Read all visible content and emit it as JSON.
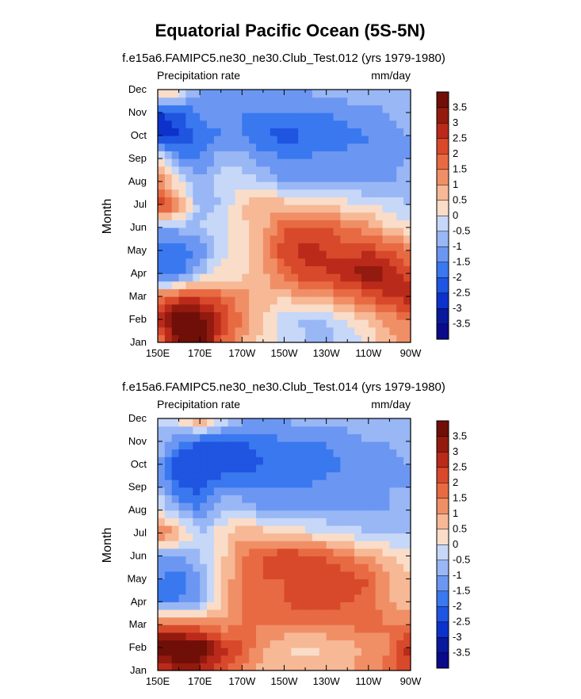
{
  "figure_title": "Equatorial Pacific Ocean (5S-5N)",
  "chart_data": [
    {
      "type": "heatmap",
      "title": "f.e15a6.FAMIPC5.ne30_ne30.Club_Test.012 (yrs 1979-1980)",
      "left_label": "Precipitation rate",
      "right_label": "mm/day",
      "ylabel": "Month",
      "xlabel": "",
      "x_tick_labels": [
        "150E",
        "170E",
        "170W",
        "150W",
        "130W",
        "110W",
        "90W"
      ],
      "y_tick_labels": [
        "Jan",
        "Feb",
        "Mar",
        "Apr",
        "May",
        "Jun",
        "Jul",
        "Aug",
        "Sep",
        "Oct",
        "Nov",
        "Dec"
      ],
      "xlim_deg_east": [
        150,
        270
      ],
      "x_values_deg_east": [
        150,
        160,
        170,
        180,
        190,
        200,
        210,
        220,
        230,
        240,
        250,
        260,
        270
      ],
      "colorbar_levels": [
        "3.5",
        "3",
        "2.5",
        "2",
        "1.5",
        "1",
        "0.5",
        "0",
        "-0.5",
        "-1",
        "-1.5",
        "-2",
        "-2.5",
        "-3",
        "-3.5"
      ],
      "values": [
        [
          1.5,
          3.5,
          4.0,
          2.0,
          1.0,
          0.3,
          -0.2,
          -0.5,
          -0.6,
          -0.5,
          0.2,
          0.8,
          1.2
        ],
        [
          2.5,
          4.2,
          4.0,
          2.5,
          1.5,
          0.4,
          -0.3,
          -0.6,
          -0.5,
          0.0,
          0.6,
          1.2,
          1.5
        ],
        [
          1.5,
          2.2,
          2.2,
          1.8,
          1.2,
          0.8,
          0.6,
          1.0,
          1.2,
          1.5,
          2.0,
          2.5,
          2.8
        ],
        [
          -2.0,
          -1.8,
          -0.5,
          0.2,
          0.3,
          0.8,
          1.8,
          2.3,
          2.5,
          2.8,
          3.6,
          3.0,
          2.2
        ],
        [
          -2.0,
          -1.8,
          -1.5,
          -0.2,
          0.2,
          1.0,
          2.3,
          2.8,
          2.5,
          2.2,
          2.4,
          2.0,
          1.5
        ],
        [
          -1.0,
          -0.8,
          -0.5,
          -0.1,
          0.3,
          0.8,
          2.0,
          2.0,
          2.0,
          1.5,
          1.2,
          0.5,
          0.2
        ],
        [
          2.8,
          1.2,
          -0.8,
          -0.5,
          0.6,
          0.8,
          0.8,
          0.6,
          0.4,
          0.2,
          0.0,
          -0.3,
          -0.5
        ],
        [
          1.5,
          0.0,
          -1.0,
          -0.3,
          -0.2,
          -0.5,
          -1.0,
          -1.2,
          -1.0,
          -1.0,
          -1.2,
          -1.0,
          -0.8
        ],
        [
          0.5,
          -1.5,
          -1.5,
          -0.7,
          -0.8,
          -1.2,
          -1.5,
          -1.5,
          -1.2,
          -1.2,
          -1.5,
          -1.2,
          -1.0
        ],
        [
          -3.0,
          -2.5,
          -1.8,
          -1.5,
          -1.5,
          -2.0,
          -2.2,
          -2.0,
          -2.0,
          -1.8,
          -1.5,
          -1.2,
          -1.0
        ],
        [
          -2.5,
          -2.2,
          -1.5,
          -1.2,
          -1.5,
          -1.5,
          -1.5,
          -1.5,
          -1.5,
          -1.2,
          -1.2,
          -1.0,
          -0.8
        ],
        [
          0.5,
          0.5,
          -1.0,
          -1.0,
          -1.2,
          -1.2,
          -1.2,
          -1.0,
          -0.8,
          -0.8,
          -0.8,
          -0.7,
          -0.5
        ]
      ]
    },
    {
      "type": "heatmap",
      "title": "f.e15a6.FAMIPC5.ne30_ne30.Club_Test.014 (yrs 1979-1980)",
      "left_label": "Precipitation rate",
      "right_label": "mm/day",
      "ylabel": "Month",
      "xlabel": "",
      "x_tick_labels": [
        "150E",
        "170E",
        "170W",
        "150W",
        "130W",
        "110W",
        "90W"
      ],
      "y_tick_labels": [
        "Jan",
        "Feb",
        "Mar",
        "Apr",
        "May",
        "Jun",
        "Jul",
        "Aug",
        "Sep",
        "Oct",
        "Nov",
        "Dec"
      ],
      "xlim_deg_east": [
        150,
        270
      ],
      "x_values_deg_east": [
        150,
        160,
        170,
        180,
        190,
        200,
        210,
        220,
        230,
        240,
        250,
        260,
        270
      ],
      "colorbar_levels": [
        "3.5",
        "3",
        "2.5",
        "2",
        "1.5",
        "1",
        "0.5",
        "0",
        "-0.5",
        "-1",
        "-1.5",
        "-2",
        "-2.5",
        "-3",
        "-3.5"
      ],
      "values": [
        [
          2.5,
          3.0,
          2.8,
          2.0,
          1.5,
          0.8,
          0.6,
          0.6,
          0.8,
          1.0,
          1.2,
          1.8,
          2.5
        ],
        [
          4.0,
          4.2,
          4.2,
          2.8,
          2.0,
          1.0,
          0.5,
          0.4,
          0.5,
          0.8,
          1.0,
          1.5,
          2.8
        ],
        [
          2.0,
          2.0,
          1.5,
          1.2,
          1.5,
          1.5,
          1.5,
          1.5,
          1.5,
          1.5,
          1.8,
          1.5,
          1.5
        ],
        [
          -1.5,
          -1.5,
          -1.0,
          0.5,
          1.5,
          1.5,
          2.0,
          2.2,
          2.5,
          2.0,
          1.8,
          1.0,
          0.5
        ],
        [
          -1.5,
          -1.8,
          -1.2,
          0.5,
          1.5,
          2.0,
          2.0,
          2.0,
          2.3,
          2.2,
          2.0,
          1.0,
          0.5
        ],
        [
          -1.0,
          -1.0,
          -0.5,
          0.3,
          1.5,
          2.0,
          2.5,
          2.2,
          2.0,
          1.5,
          1.0,
          0.5,
          0.3
        ],
        [
          1.8,
          1.0,
          -0.5,
          0.3,
          0.8,
          0.8,
          0.5,
          0.2,
          0.0,
          -0.2,
          -0.5,
          -0.5,
          -0.6
        ],
        [
          0.2,
          -1.0,
          -1.5,
          -0.5,
          -0.5,
          -1.0,
          -1.2,
          -1.0,
          -1.0,
          -1.0,
          -1.0,
          -1.0,
          -0.8
        ],
        [
          -0.8,
          -2.0,
          -2.2,
          -1.5,
          -1.5,
          -1.5,
          -1.5,
          -1.5,
          -1.2,
          -1.2,
          -1.2,
          -1.0,
          -1.0
        ],
        [
          -0.8,
          -2.5,
          -2.5,
          -2.5,
          -2.3,
          -2.0,
          -2.0,
          -1.8,
          -1.8,
          -1.5,
          -1.5,
          -1.2,
          -1.0
        ],
        [
          -0.5,
          -1.5,
          -2.0,
          -2.0,
          -2.0,
          -1.8,
          -1.5,
          -1.5,
          -1.5,
          -1.2,
          -1.0,
          -1.0,
          -0.8
        ],
        [
          -0.5,
          0.2,
          1.2,
          0.0,
          -0.8,
          -1.0,
          -1.0,
          -0.8,
          -0.8,
          -0.8,
          -0.5,
          -0.5,
          -0.5
        ]
      ]
    }
  ]
}
